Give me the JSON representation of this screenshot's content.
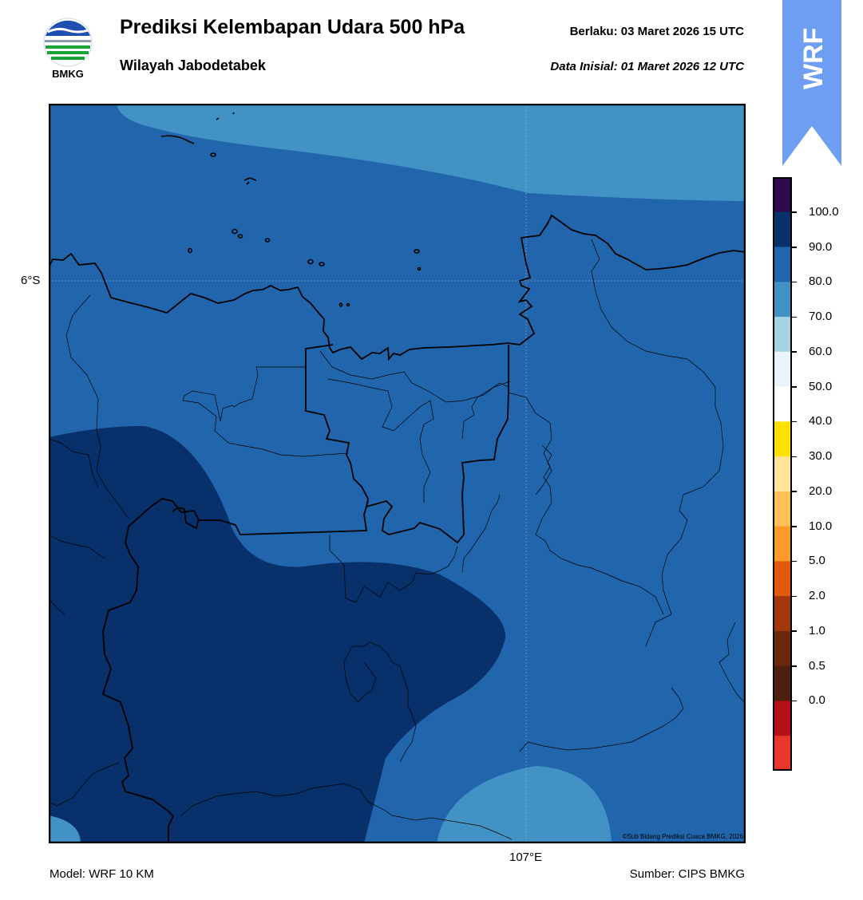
{
  "header": {
    "title": "Prediksi Kelembapan Udara 500 hPa",
    "subtitle": "Wilayah Jabodetabek",
    "valid_label": "Berlaku:  03 Maret 2026 15 UTC",
    "init_label": "Data Inisial:  01 Maret 2026 12 UTC",
    "logo_text": "BMKG",
    "banner_text": "WRF",
    "banner_color": "#6e9ef2"
  },
  "map": {
    "lat_label": "6°S",
    "lon_label": "107°E",
    "copyright": "©Sub Bidang Prediksi Cuaca BMKG, 2026",
    "fill_colors": {
      "band_70_80": "#4292c6",
      "band_80_90": "#2166ac",
      "band_90_100": "#08306b"
    }
  },
  "colorbar": {
    "ticks": [
      "100.0",
      "90.0",
      "80.0",
      "70.0",
      "60.0",
      "50.0",
      "40.0",
      "30.0",
      "20.0",
      "10.0",
      "5.0",
      "2.0",
      "1.0",
      "0.5",
      "0.0"
    ],
    "colors": [
      "#2d0a4e",
      "#08306b",
      "#2166ac",
      "#4292c6",
      "#a6d4e4",
      "#e8f3fa",
      "#ffffff",
      "#ffe100",
      "#ffe39a",
      "#ffc05a",
      "#fb9a29",
      "#e05a0a",
      "#a3370c",
      "#6b2a0e",
      "#4e1e0e",
      "#b51018",
      "#e8372a"
    ]
  },
  "footer": {
    "model": "Model: WRF 10 KM",
    "source": "Sumber: CIPS BMKG"
  }
}
